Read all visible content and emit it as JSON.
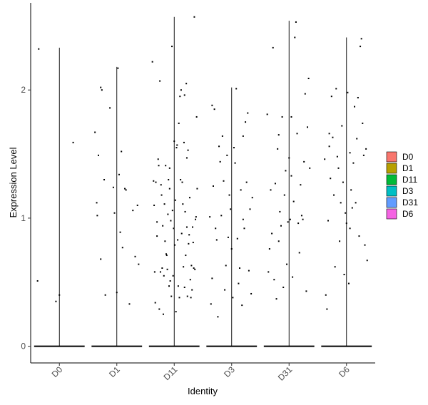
{
  "chart_data": {
    "type": "scatter",
    "subtype": "violin-jitter",
    "xlabel": "Identity",
    "ylabel": "Expression Level",
    "ylim": [
      -0.13,
      2.68
    ],
    "yticks": [
      0,
      1,
      2
    ],
    "grid": false,
    "legend_position": "right",
    "categories": [
      "D0",
      "D1",
      "D11",
      "D3",
      "D31",
      "D6"
    ],
    "legend": [
      {
        "label": "D0",
        "color": "#F8766D"
      },
      {
        "label": "D1",
        "color": "#B79F00"
      },
      {
        "label": "D11",
        "color": "#00BA38"
      },
      {
        "label": "D3",
        "color": "#00BFC4"
      },
      {
        "label": "D31",
        "color": "#619CFF"
      },
      {
        "label": "D6",
        "color": "#F564E3"
      }
    ],
    "series": [
      {
        "name": "D0",
        "max": 2.33,
        "points": [
          [
            -0.36,
            2.32
          ],
          [
            -0.38,
            0.51
          ],
          [
            -0.06,
            0.35
          ],
          [
            0.0,
            0.4
          ],
          [
            0.24,
            1.59
          ]
        ]
      },
      {
        "name": "D1",
        "max": 2.18,
        "points": [
          [
            -0.38,
            1.67
          ],
          [
            -0.35,
            1.12
          ],
          [
            -0.34,
            1.02
          ],
          [
            -0.32,
            1.49
          ],
          [
            -0.28,
            2.02
          ],
          [
            -0.26,
            2.0
          ],
          [
            -0.22,
            1.3
          ],
          [
            -0.2,
            0.4
          ],
          [
            -0.12,
            1.86
          ],
          [
            -0.06,
            1.24
          ],
          [
            -0.04,
            1.04
          ],
          [
            0.0,
            0.42
          ],
          [
            0.02,
            2.17
          ],
          [
            0.04,
            1.34
          ],
          [
            0.06,
            0.89
          ],
          [
            0.08,
            1.52
          ],
          [
            0.14,
            1.23
          ],
          [
            0.16,
            1.22
          ],
          [
            0.22,
            0.33
          ],
          [
            0.28,
            1.06
          ],
          [
            0.32,
            0.7
          ],
          [
            0.38,
            0.64
          ],
          [
            0.1,
            0.77
          ],
          [
            -0.28,
            0.68
          ],
          [
            0.36,
            1.1
          ]
        ]
      },
      {
        "name": "D11",
        "max": 2.57,
        "points": [
          [
            -0.38,
            2.22
          ],
          [
            -0.36,
            1.29
          ],
          [
            -0.35,
            1.1
          ],
          [
            -0.34,
            0.58
          ],
          [
            -0.33,
            0.34
          ],
          [
            -0.32,
            1.28
          ],
          [
            -0.3,
            0.97
          ],
          [
            -0.3,
            0.86
          ],
          [
            -0.28,
            1.46
          ],
          [
            -0.27,
            1.41
          ],
          [
            -0.26,
            0.29
          ],
          [
            -0.25,
            2.07
          ],
          [
            -0.24,
            0.58
          ],
          [
            -0.23,
            1.26
          ],
          [
            -0.22,
            1.18
          ],
          [
            -0.21,
            0.61
          ],
          [
            -0.2,
            0.94
          ],
          [
            -0.19,
            0.25
          ],
          [
            -0.18,
            0.55
          ],
          [
            -0.17,
            1.11
          ],
          [
            -0.16,
            0.82
          ],
          [
            -0.15,
            1.41
          ],
          [
            -0.14,
            0.72
          ],
          [
            -0.13,
            0.71
          ],
          [
            -0.12,
            0.6
          ],
          [
            -0.11,
            1.03
          ],
          [
            -0.1,
            1.3
          ],
          [
            -0.09,
            0.47
          ],
          [
            -0.08,
            1.23
          ],
          [
            -0.07,
            0.51
          ],
          [
            -0.06,
            0.98
          ],
          [
            -0.05,
            0.39
          ],
          [
            -0.04,
            2.34
          ],
          [
            -0.03,
            1.06
          ],
          [
            -0.02,
            0.55
          ],
          [
            -0.01,
            0.92
          ],
          [
            0.0,
            1.6
          ],
          [
            0.01,
            0.79
          ],
          [
            0.02,
            1.14
          ],
          [
            0.03,
            0.27
          ],
          [
            0.04,
            1.55
          ],
          [
            0.05,
            1.57
          ],
          [
            0.06,
            0.83
          ],
          [
            0.07,
            0.47
          ],
          [
            0.08,
            1.74
          ],
          [
            0.09,
            0.38
          ],
          [
            0.1,
            1.95
          ],
          [
            0.11,
            1.3
          ],
          [
            0.12,
            2.0
          ],
          [
            0.13,
            0.88
          ],
          [
            0.14,
            1.28
          ],
          [
            0.15,
            1.11
          ],
          [
            0.16,
            0.62
          ],
          [
            0.17,
            1.59
          ],
          [
            0.18,
            0.46
          ],
          [
            0.19,
            1.05
          ],
          [
            0.2,
            0.71
          ],
          [
            0.21,
            2.05
          ],
          [
            0.22,
            0.93
          ],
          [
            0.23,
            0.39
          ],
          [
            0.24,
            1.53
          ],
          [
            0.25,
            0.8
          ],
          [
            0.26,
            0.87
          ],
          [
            0.27,
            1.16
          ],
          [
            0.28,
            0.52
          ],
          [
            0.29,
            0.38
          ],
          [
            0.3,
            0.63
          ],
          [
            0.31,
            0.44
          ],
          [
            0.32,
            0.93
          ],
          [
            0.33,
            0.81
          ],
          [
            0.34,
            0.61
          ],
          [
            0.35,
            2.57
          ],
          [
            0.36,
            0.6
          ],
          [
            0.37,
            0.99
          ],
          [
            0.38,
            1.01
          ],
          [
            0.39,
            1.79
          ],
          [
            0.4,
            1.23
          ],
          [
            0.18,
            1.96
          ],
          [
            0.22,
            1.47
          ],
          [
            -0.08,
            1.39
          ]
        ]
      },
      {
        "name": "D3",
        "max": 2.02,
        "points": [
          [
            -0.38,
            1.01
          ],
          [
            -0.36,
            0.33
          ],
          [
            -0.34,
            1.88
          ],
          [
            -0.32,
            1.25
          ],
          [
            -0.3,
            1.85
          ],
          [
            -0.28,
            0.92
          ],
          [
            -0.26,
            0.83
          ],
          [
            -0.24,
            0.23
          ],
          [
            -0.22,
            1.56
          ],
          [
            -0.2,
            1.44
          ],
          [
            -0.18,
            1.02
          ],
          [
            -0.16,
            1.64
          ],
          [
            -0.14,
            1.29
          ],
          [
            -0.12,
            0.44
          ],
          [
            -0.1,
            0.63
          ],
          [
            -0.08,
            1.49
          ],
          [
            -0.06,
            0.85
          ],
          [
            -0.04,
            1.18
          ],
          [
            -0.02,
            1.07
          ],
          [
            0.0,
            0.76
          ],
          [
            0.02,
            0.38
          ],
          [
            0.04,
            1.55
          ],
          [
            0.06,
            1.43
          ],
          [
            0.08,
            2.01
          ],
          [
            0.1,
            0.84
          ],
          [
            0.12,
            0.49
          ],
          [
            0.14,
            0.61
          ],
          [
            0.16,
            1.22
          ],
          [
            0.18,
            0.32
          ],
          [
            0.2,
            1.64
          ],
          [
            0.22,
            0.92
          ],
          [
            0.24,
            1.75
          ],
          [
            0.26,
            1.28
          ],
          [
            0.28,
            1.82
          ],
          [
            0.3,
            0.59
          ],
          [
            0.32,
            1.07
          ],
          [
            0.34,
            0.41
          ],
          [
            0.36,
            1.16
          ],
          [
            -0.34,
            0.53
          ],
          [
            0.2,
            0.99
          ]
        ]
      },
      {
        "name": "D31",
        "max": 2.54,
        "points": [
          [
            -0.38,
            1.81
          ],
          [
            -0.36,
            0.58
          ],
          [
            -0.34,
            0.76
          ],
          [
            -0.32,
            1.22
          ],
          [
            -0.3,
            0.88
          ],
          [
            -0.28,
            2.33
          ],
          [
            -0.26,
            0.52
          ],
          [
            -0.24,
            1.27
          ],
          [
            -0.22,
            0.37
          ],
          [
            -0.2,
            1.54
          ],
          [
            -0.18,
            0.82
          ],
          [
            -0.16,
            1.05
          ],
          [
            -0.14,
            0.94
          ],
          [
            -0.12,
            1.79
          ],
          [
            -0.1,
            0.46
          ],
          [
            -0.08,
            1.18
          ],
          [
            -0.06,
            1.37
          ],
          [
            -0.04,
            0.64
          ],
          [
            -0.02,
            0.97
          ],
          [
            0.0,
            1.47
          ],
          [
            0.02,
            0.99
          ],
          [
            0.04,
            1.79
          ],
          [
            0.06,
            0.54
          ],
          [
            0.08,
            1.13
          ],
          [
            0.1,
            2.41
          ],
          [
            0.12,
            2.53
          ],
          [
            0.14,
            1.66
          ],
          [
            0.16,
            0.96
          ],
          [
            0.18,
            0.73
          ],
          [
            0.2,
            1.26
          ],
          [
            0.22,
            1.02
          ],
          [
            0.24,
            0.99
          ],
          [
            0.26,
            1.44
          ],
          [
            0.28,
            1.97
          ],
          [
            0.3,
            0.43
          ],
          [
            0.32,
            1.71
          ],
          [
            0.34,
            2.09
          ],
          [
            0.36,
            1.39
          ],
          [
            -0.18,
            1.65
          ],
          [
            0.04,
            1.33
          ]
        ]
      },
      {
        "name": "D6",
        "max": 2.41,
        "points": [
          [
            -0.38,
            1.46
          ],
          [
            -0.36,
            0.4
          ],
          [
            -0.34,
            0.29
          ],
          [
            -0.32,
            0.98
          ],
          [
            -0.3,
            1.66
          ],
          [
            -0.28,
            1.31
          ],
          [
            -0.26,
            1.95
          ],
          [
            -0.24,
            1.63
          ],
          [
            -0.22,
            1.18
          ],
          [
            -0.2,
            0.62
          ],
          [
            -0.18,
            2.01
          ],
          [
            -0.16,
            1.48
          ],
          [
            -0.14,
            1.39
          ],
          [
            -0.12,
            0.82
          ],
          [
            -0.1,
            1.12
          ],
          [
            -0.08,
            1.72
          ],
          [
            -0.06,
            1.28
          ],
          [
            -0.04,
            0.56
          ],
          [
            -0.02,
            1.04
          ],
          [
            0.0,
            0.96
          ],
          [
            0.02,
            1.98
          ],
          [
            0.04,
            0.49
          ],
          [
            0.06,
            1.51
          ],
          [
            0.08,
            1.22
          ],
          [
            0.1,
            1.08
          ],
          [
            0.12,
            1.43
          ],
          [
            0.14,
            1.87
          ],
          [
            0.16,
            1.12
          ],
          [
            0.18,
            1.62
          ],
          [
            0.2,
            1.94
          ],
          [
            0.22,
            0.86
          ],
          [
            0.24,
            2.34
          ],
          [
            0.26,
            2.4
          ],
          [
            0.28,
            1.74
          ],
          [
            0.3,
            1.49
          ],
          [
            0.32,
            0.79
          ],
          [
            0.34,
            1.54
          ],
          [
            0.36,
            0.67
          ],
          [
            -0.3,
            1.56
          ],
          [
            0.06,
            0.92
          ]
        ]
      }
    ]
  }
}
